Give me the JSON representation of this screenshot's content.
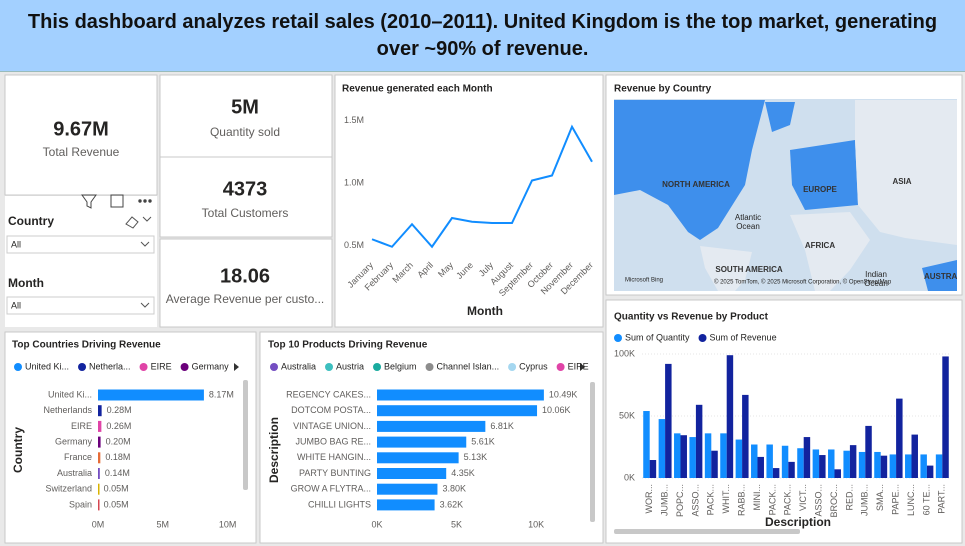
{
  "header": {
    "title": "This dashboard analyzes retail sales (2010–2011). United Kingdom is the top market, generating over ~90% of revenue."
  },
  "kpis": [
    {
      "value": "9.67M",
      "label": "Total Revenue"
    },
    {
      "value": "5M",
      "label": "Quantity sold"
    },
    {
      "value": "4373",
      "label": "Total  Customers"
    },
    {
      "value": "18.06",
      "label": "Average  Revenue per custo..."
    }
  ],
  "slicers": [
    {
      "title": "Country",
      "selection": "All"
    },
    {
      "title": "Month",
      "selection": "All"
    }
  ],
  "map": {
    "title": "Revenue by Country",
    "labels": [
      "NORTH AMERICA",
      "EUROPE",
      "ASIA",
      "Atlantic",
      "Ocean",
      "AFRICA",
      "SOUTH AMERICA",
      "Indian",
      "Ocean",
      "AUSTRA"
    ],
    "provider": "Microsoft Bing",
    "attribution": "© 2025 TomTom, © 2025 Microsoft Corporation, © OpenStreetMap"
  },
  "chart_data": [
    {
      "type": "line",
      "title": "Revenue generated each Month",
      "xlabel": "Month",
      "color": "#118dff",
      "categories": [
        "January",
        "February",
        "March",
        "April",
        "May",
        "June",
        "July",
        "August",
        "September",
        "October",
        "November",
        "December"
      ],
      "values": [
        550000,
        490000,
        670000,
        490000,
        720000,
        690000,
        680000,
        680000,
        1020000,
        1060000,
        1450000,
        1170000
      ],
      "ylim": [
        400000,
        1600000
      ],
      "yticks": [
        {
          "value": 500000,
          "label": "0.5M"
        },
        {
          "value": 1000000,
          "label": "1.0M"
        },
        {
          "value": 1500000,
          "label": "1.5M"
        }
      ]
    },
    {
      "type": "bar",
      "horizontal": true,
      "title": "Top Countries Driving Revenue",
      "ylabel": "Country",
      "categories": [
        "United Ki...",
        "Netherlands",
        "EIRE",
        "Germany",
        "France",
        "Australia",
        "Switzerland",
        "Spain"
      ],
      "values": [
        8170000,
        280000,
        260000,
        200000,
        180000,
        140000,
        50000,
        50000
      ],
      "value_labels": [
        "8.17M",
        "0.28M",
        "0.26M",
        "0.20M",
        "0.18M",
        "0.14M",
        "0.05M",
        "0.05M"
      ],
      "colors": [
        "#118dff",
        "#12239e",
        "#e044a7",
        "#6b007b",
        "#e66c37",
        "#744ec2",
        "#d9b300",
        "#d64550"
      ],
      "legend": [
        "United Ki...",
        "Netherla...",
        "EIRE",
        "Germany"
      ],
      "xlim": [
        0,
        10800000
      ],
      "xticks": [
        {
          "value": 0,
          "label": "0M"
        },
        {
          "value": 5000000,
          "label": "5M"
        },
        {
          "value": 10000000,
          "label": "10M"
        }
      ]
    },
    {
      "type": "bar",
      "horizontal": true,
      "title": "Top 10 Products Driving Revenue",
      "ylabel": "Description",
      "color": "#118dff",
      "categories": [
        "REGENCY CAKES...",
        "DOTCOM POSTA...",
        "VINTAGE UNION...",
        "JUMBO BAG RE...",
        "WHITE HANGIN...",
        "PARTY BUNTING",
        "GROW A FLYTRA...",
        "CHILLI LIGHTS"
      ],
      "values": [
        10490,
        10060,
        6810,
        5610,
        5130,
        4350,
        3800,
        3620
      ],
      "value_labels": [
        "10.49K",
        "10.06K",
        "6.81K",
        "5.61K",
        "5.13K",
        "4.35K",
        "3.80K",
        "3.62K"
      ],
      "legend": [
        {
          "name": "Australia",
          "color": "#744ec2"
        },
        {
          "name": "Austria",
          "color": "#3dbfbf"
        },
        {
          "name": "Belgium",
          "color": "#1aab9f"
        },
        {
          "name": "Channel Islan...",
          "color": "#8d8d8d"
        },
        {
          "name": "Cyprus",
          "color": "#a5d7f0"
        },
        {
          "name": "EIRE",
          "color": "#e044a7"
        }
      ],
      "xlim": [
        0,
        11000
      ],
      "xticks": [
        {
          "value": 0,
          "label": "0K"
        },
        {
          "value": 5000,
          "label": "5K"
        },
        {
          "value": 10000,
          "label": "10K"
        }
      ]
    },
    {
      "type": "bar",
      "title": "Quantity vs Revenue by Product",
      "xlabel": "Description",
      "categories": [
        "WOR...",
        "JUMB...",
        "POPC...",
        "ASSO...",
        "PACK...",
        "WHIT...",
        "RABB...",
        "MINI...",
        "PACK...",
        "PACK...",
        "VICT...",
        "ASSO...",
        "BROC...",
        "RED...",
        "JUMB...",
        "SMA...",
        "PAPE...",
        "LUNC...",
        "60 TE...",
        "PART..."
      ],
      "series": [
        {
          "name": "Sum of Quantity",
          "color": "#118dff",
          "values": [
            54000,
            47500,
            36000,
            33000,
            36000,
            36000,
            31000,
            27000,
            27000,
            26000,
            24000,
            23000,
            23000,
            22000,
            21000,
            21000,
            19000,
            19000,
            19000,
            19000
          ]
        },
        {
          "name": "Sum of Revenue",
          "color": "#12239e",
          "values": [
            14500,
            92000,
            34500,
            59000,
            22000,
            99000,
            67000,
            17000,
            8000,
            13000,
            33000,
            18500,
            7000,
            26500,
            42000,
            18000,
            64000,
            35000,
            10000,
            98000
          ]
        }
      ],
      "ylim": [
        0,
        104000
      ],
      "yticks": [
        {
          "value": 0,
          "label": "0K"
        },
        {
          "value": 50000,
          "label": "50K"
        },
        {
          "value": 100000,
          "label": "100K"
        }
      ]
    }
  ]
}
